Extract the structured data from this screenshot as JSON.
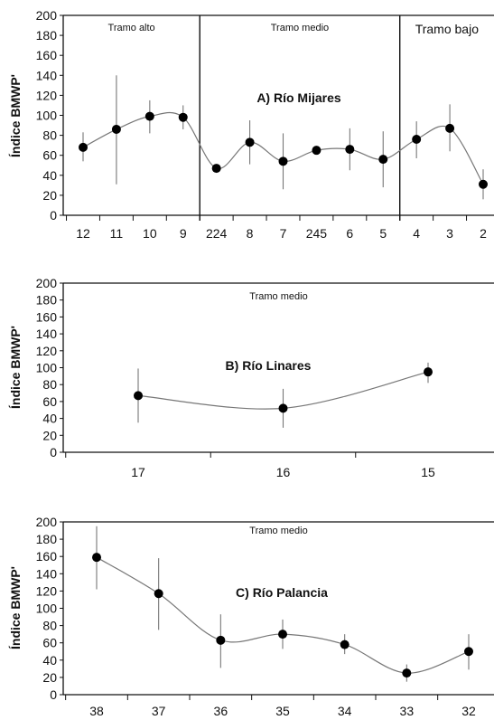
{
  "chart_data": [
    {
      "type": "line",
      "title": "A) Río Mijares",
      "ylabel": "Índice BMWP'",
      "xlabel": "",
      "ylim": [
        0,
        200
      ],
      "yticks": [
        0,
        20,
        40,
        60,
        80,
        100,
        120,
        140,
        160,
        180,
        200
      ],
      "categories": [
        "12",
        "11",
        "10",
        "9",
        "224",
        "8",
        "7",
        "245",
        "6",
        "5",
        "4",
        "3",
        "2"
      ],
      "values": [
        68,
        86,
        99,
        98,
        47,
        73,
        54,
        65,
        66,
        56,
        76,
        87,
        31
      ],
      "error_low": [
        54,
        31,
        82,
        86,
        47,
        51,
        26,
        65,
        45,
        28,
        57,
        64,
        16
      ],
      "error_high": [
        83,
        140,
        115,
        110,
        47,
        95,
        82,
        65,
        87,
        84,
        94,
        111,
        46
      ],
      "sections": [
        {
          "label": "Tramo alto",
          "from_index": 0,
          "to_index": 3
        },
        {
          "label": "Tramo medio",
          "from_index": 4,
          "to_index": 9
        },
        {
          "label": "Tramo bajo",
          "from_index": 10,
          "to_index": 12
        }
      ],
      "grid": false
    },
    {
      "type": "line",
      "title": "B) Río Linares",
      "ylabel": "Índice BMWP'",
      "xlabel": "",
      "ylim": [
        0,
        200
      ],
      "yticks": [
        0,
        20,
        40,
        60,
        80,
        100,
        120,
        140,
        160,
        180,
        200
      ],
      "categories": [
        "17",
        "16",
        "15"
      ],
      "values": [
        67,
        52,
        95
      ],
      "error_low": [
        35,
        29,
        82
      ],
      "error_high": [
        99,
        75,
        106
      ],
      "sections": [
        {
          "label": "Tramo medio",
          "from_index": 0,
          "to_index": 2
        }
      ],
      "grid": false
    },
    {
      "type": "line",
      "title": "C) Río Palancia",
      "ylabel": "Índice BMWP'",
      "xlabel": "",
      "ylim": [
        0,
        200
      ],
      "yticks": [
        0,
        20,
        40,
        60,
        80,
        100,
        120,
        140,
        160,
        180,
        200
      ],
      "categories": [
        "38",
        "37",
        "36",
        "35",
        "34",
        "33",
        "32"
      ],
      "values": [
        159,
        117,
        63,
        70,
        58,
        25,
        50
      ],
      "error_low": [
        122,
        75,
        31,
        53,
        47,
        15,
        29
      ],
      "error_high": [
        195,
        158,
        93,
        87,
        70,
        35,
        70
      ],
      "sections": [
        {
          "label": "Tramo medio",
          "from_index": 0,
          "to_index": 6
        }
      ],
      "grid": false
    }
  ]
}
